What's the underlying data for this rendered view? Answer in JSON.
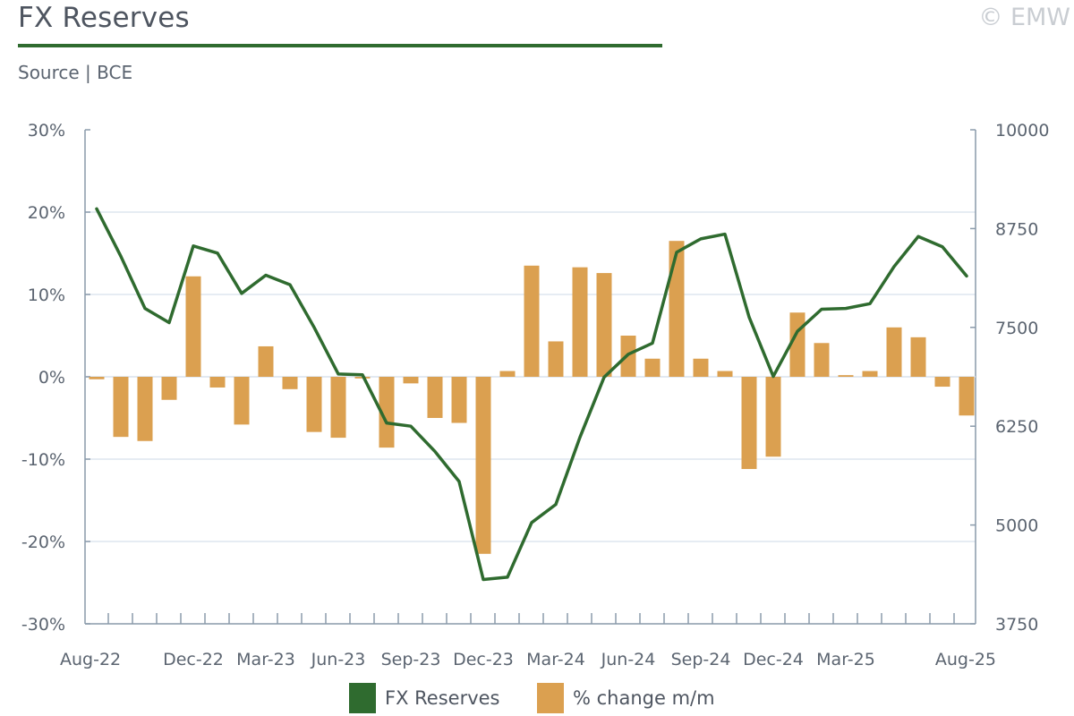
{
  "header": {
    "title": "FX Reserves",
    "copyright": "© EMW",
    "source": "Source | BCE"
  },
  "colors": {
    "line": "#2f6b2f",
    "bar": "#dba050",
    "grid": "#dde6ef",
    "axis": "#8a9aaa",
    "title_rule": "#2f6b2f"
  },
  "legend": [
    {
      "label": "FX Reserves",
      "swatch": "line"
    },
    {
      "label": "% change m/m",
      "swatch": "bar"
    }
  ],
  "chart_data": {
    "type": "bar+line",
    "x_tick_labels": [
      "Aug-22",
      "Dec-22",
      "Mar-23",
      "Jun-23",
      "Sep-23",
      "Dec-23",
      "Mar-24",
      "Jun-24",
      "Sep-24",
      "Dec-24",
      "Mar-25",
      "Aug-25"
    ],
    "x_tick_positions": [
      0,
      4,
      7,
      10,
      13,
      16,
      19,
      22,
      25,
      28,
      31,
      36
    ],
    "y_left": {
      "min": -0.3,
      "max": 0.3,
      "ticks": [
        "30%",
        "20%",
        "10%",
        "0%",
        "-10%",
        "-20%",
        "-30%"
      ]
    },
    "y_right": {
      "min": 3750,
      "max": 10000,
      "ticks": [
        "10000",
        "8750",
        "7500",
        "6250",
        "5000",
        "3750"
      ]
    },
    "grid": "horizontal",
    "legend_position": "bottom",
    "series": [
      {
        "name": "% change m/m",
        "type": "bar",
        "axis": "left",
        "values": [
          -0.003,
          -0.073,
          -0.078,
          -0.028,
          0.122,
          -0.013,
          -0.058,
          0.037,
          -0.015,
          -0.067,
          -0.074,
          -0.002,
          -0.086,
          -0.008,
          -0.05,
          -0.056,
          -0.215,
          0.007,
          0.135,
          0.043,
          0.133,
          0.126,
          0.05,
          0.022,
          0.165,
          0.022,
          0.007,
          -0.112,
          -0.097,
          0.078,
          0.041,
          0.002,
          0.007,
          0.06,
          0.048,
          -0.012,
          -0.047
        ]
      },
      {
        "name": "FX Reserves",
        "type": "line",
        "axis": "right",
        "values": [
          9000,
          8400,
          7740,
          7560,
          8530,
          8440,
          7930,
          8160,
          8040,
          7500,
          6910,
          6900,
          6290,
          6250,
          5930,
          5550,
          4310,
          4340,
          5030,
          5260,
          6110,
          6870,
          7160,
          7300,
          8450,
          8620,
          8680,
          7630,
          6880,
          7450,
          7730,
          7740,
          7800,
          8270,
          8650,
          8520,
          8150
        ]
      }
    ]
  }
}
